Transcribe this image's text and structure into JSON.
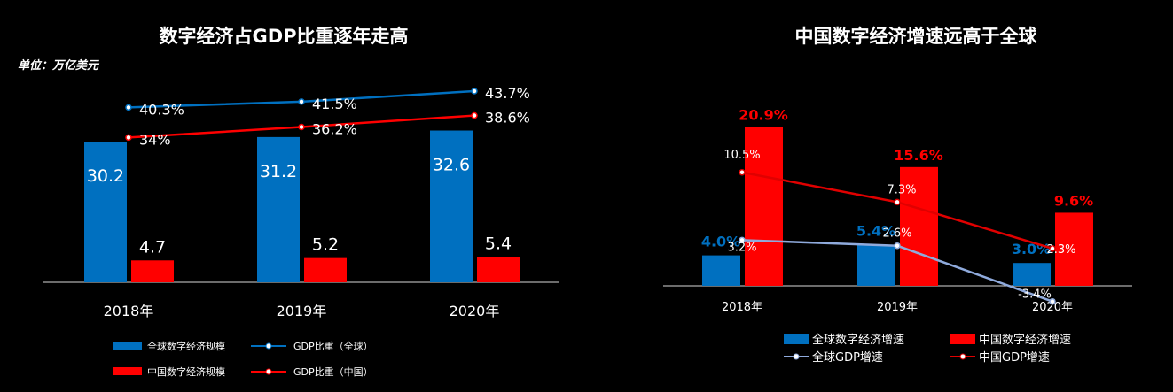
{
  "chart_data": [
    {
      "type": "bar",
      "title": "数字经济占GDP比重逐年走高",
      "unit_label": "单位：万亿美元",
      "categories": [
        "2018年",
        "2019年",
        "2020年"
      ],
      "series": [
        {
          "name": "全球数字经济规模",
          "kind": "bar",
          "color": "#0070c0",
          "values": [
            30.2,
            31.2,
            32.6
          ],
          "labels": [
            "30.2",
            "31.2",
            "32.6"
          ]
        },
        {
          "name": "中国数字经济规模",
          "kind": "bar",
          "color": "#ff0000",
          "values": [
            4.7,
            5.2,
            5.4
          ],
          "labels": [
            "4.7",
            "5.2",
            "5.4"
          ]
        },
        {
          "name": "GDP比重（全球）",
          "kind": "line",
          "color": "#0070c0",
          "values": [
            40.3,
            41.5,
            43.7
          ],
          "labels": [
            "40.3%",
            "41.5%",
            "43.7%"
          ]
        },
        {
          "name": "GDP比重（中国）",
          "kind": "line",
          "color": "#ff0000",
          "values": [
            34,
            36.2,
            38.6
          ],
          "labels": [
            "34%",
            "36.2%",
            "38.6%"
          ]
        }
      ],
      "legend_position": "bottom"
    },
    {
      "type": "bar",
      "title": "中国数字经济增速远高于全球",
      "categories": [
        "2018年",
        "2019年",
        "2020年"
      ],
      "series": [
        {
          "name": "全球数字经济增速",
          "kind": "bar",
          "color": "#0070c0",
          "values": [
            4.0,
            5.4,
            3.0
          ],
          "labels": [
            "4.0%",
            "5.4%",
            "3.0%"
          ]
        },
        {
          "name": "中国数字经济增速",
          "kind": "bar",
          "color": "#ff0000",
          "values": [
            20.9,
            15.6,
            9.6
          ],
          "labels": [
            "20.9%",
            "15.6%",
            "9.6%"
          ]
        },
        {
          "name": "全球GDP增速",
          "kind": "line",
          "color": "#8faadc",
          "values": [
            3.2,
            2.6,
            -3.4
          ],
          "labels": [
            "3.2%",
            "2.6%",
            "-3.4%"
          ]
        },
        {
          "name": "中国GDP增速",
          "kind": "line",
          "color": "#e00000",
          "values": [
            10.5,
            7.3,
            2.3
          ],
          "labels": [
            "10.5%",
            "7.3%",
            "2.3%"
          ]
        }
      ],
      "legend_position": "bottom"
    }
  ]
}
